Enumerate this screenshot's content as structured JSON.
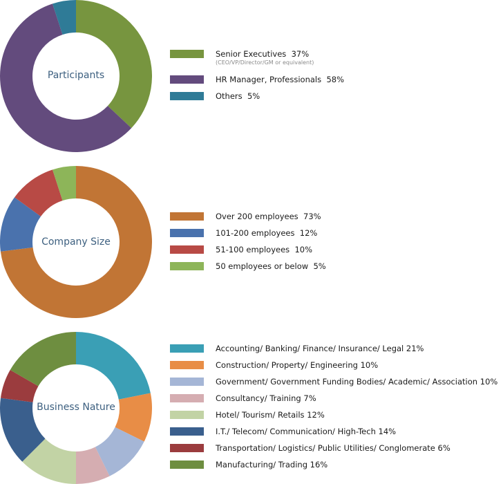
{
  "chart_data": [
    {
      "type": "pie",
      "title": "Participants",
      "start_angle_deg": 0,
      "slices": [
        {
          "label": "Senior Executives",
          "value": 37,
          "percent_text": "37%",
          "note": "(CEO/VP/Director/GM or equivalent)",
          "color": "#77953f"
        },
        {
          "label": "HR Manager, Professionals",
          "value": 58,
          "percent_text": "58%",
          "color": "#634b7d"
        },
        {
          "label": "Others",
          "value": 5,
          "percent_text": "5%",
          "color": "#2f7b97"
        }
      ]
    },
    {
      "type": "pie",
      "title": "Company Size",
      "start_angle_deg": 0,
      "slices": [
        {
          "label": "Over 200 employees",
          "value": 73,
          "percent_text": "73%",
          "color": "#c17535"
        },
        {
          "label": "101-200 employees",
          "value": 12,
          "percent_text": "12%",
          "color": "#4a72ad"
        },
        {
          "label": "51-100 employees",
          "value": 10,
          "percent_text": "10%",
          "color": "#b84a45"
        },
        {
          "label": "50 employees or below",
          "value": 5,
          "percent_text": "5%",
          "color": "#8db559"
        }
      ]
    },
    {
      "type": "pie",
      "title": "Business Nature",
      "start_angle_deg": 0,
      "slices": [
        {
          "label": "Accounting/ Banking/ Finance/ Insurance/ Legal",
          "value": 21,
          "percent_text": "21%",
          "color": "#3a9fb5"
        },
        {
          "label": "Construction/ Property/ Engineering",
          "value": 10,
          "percent_text": "10%",
          "color": "#e88d46"
        },
        {
          "label": "Government/ Government Funding Bodies/ Academic/ Association",
          "value": 10,
          "percent_text": "10%",
          "color": "#a5b6d6"
        },
        {
          "label": "Consultancy/ Training",
          "value": 7,
          "percent_text": "7%",
          "color": "#d5adb1"
        },
        {
          "label": "Hotel/ Tourism/ Retails",
          "value": 12,
          "percent_text": "12%",
          "color": "#c2d3a5"
        },
        {
          "label": "I.T./ Telecom/ Communication/ High-Tech",
          "value": 14,
          "percent_text": "14%",
          "color": "#3a5f8d"
        },
        {
          "label": "Transportation/ Logistics/ Public Utilities/ Conglomerate",
          "value": 6,
          "percent_text": "6%",
          "color": "#9b3c3e"
        },
        {
          "label": "Manufacturing/ Trading",
          "value": 16,
          "percent_text": "16%",
          "color": "#6e8e40"
        }
      ]
    }
  ]
}
